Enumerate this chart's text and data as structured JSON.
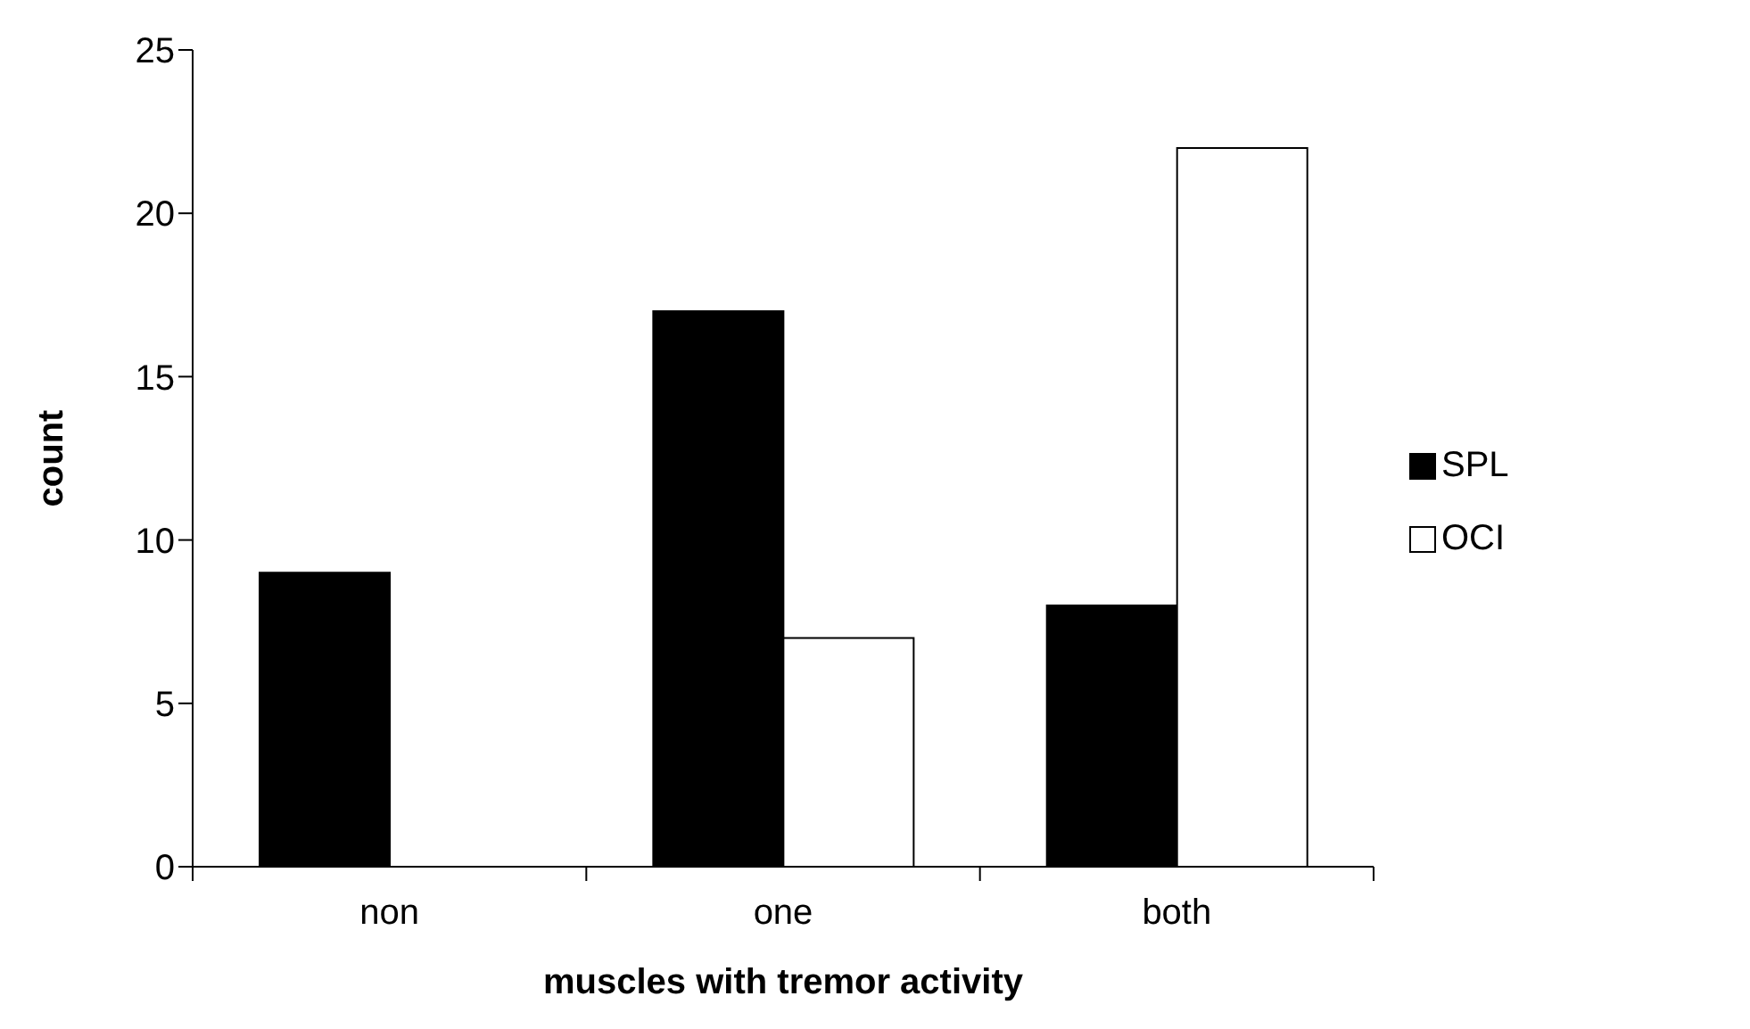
{
  "chart_data": {
    "type": "bar",
    "xlabel": "muscles with tremor activity",
    "ylabel": "count",
    "categories": [
      "non",
      "one",
      "both"
    ],
    "series": [
      {
        "name": "SPL",
        "color": "#000000",
        "values": [
          9,
          17,
          8
        ]
      },
      {
        "name": "OCI",
        "color": "#ffffff",
        "values": [
          0,
          7,
          22
        ]
      }
    ],
    "ylim": [
      0,
      25
    ],
    "yticks": [
      0,
      5,
      10,
      15,
      20,
      25
    ],
    "grid": false,
    "legend": "right"
  }
}
